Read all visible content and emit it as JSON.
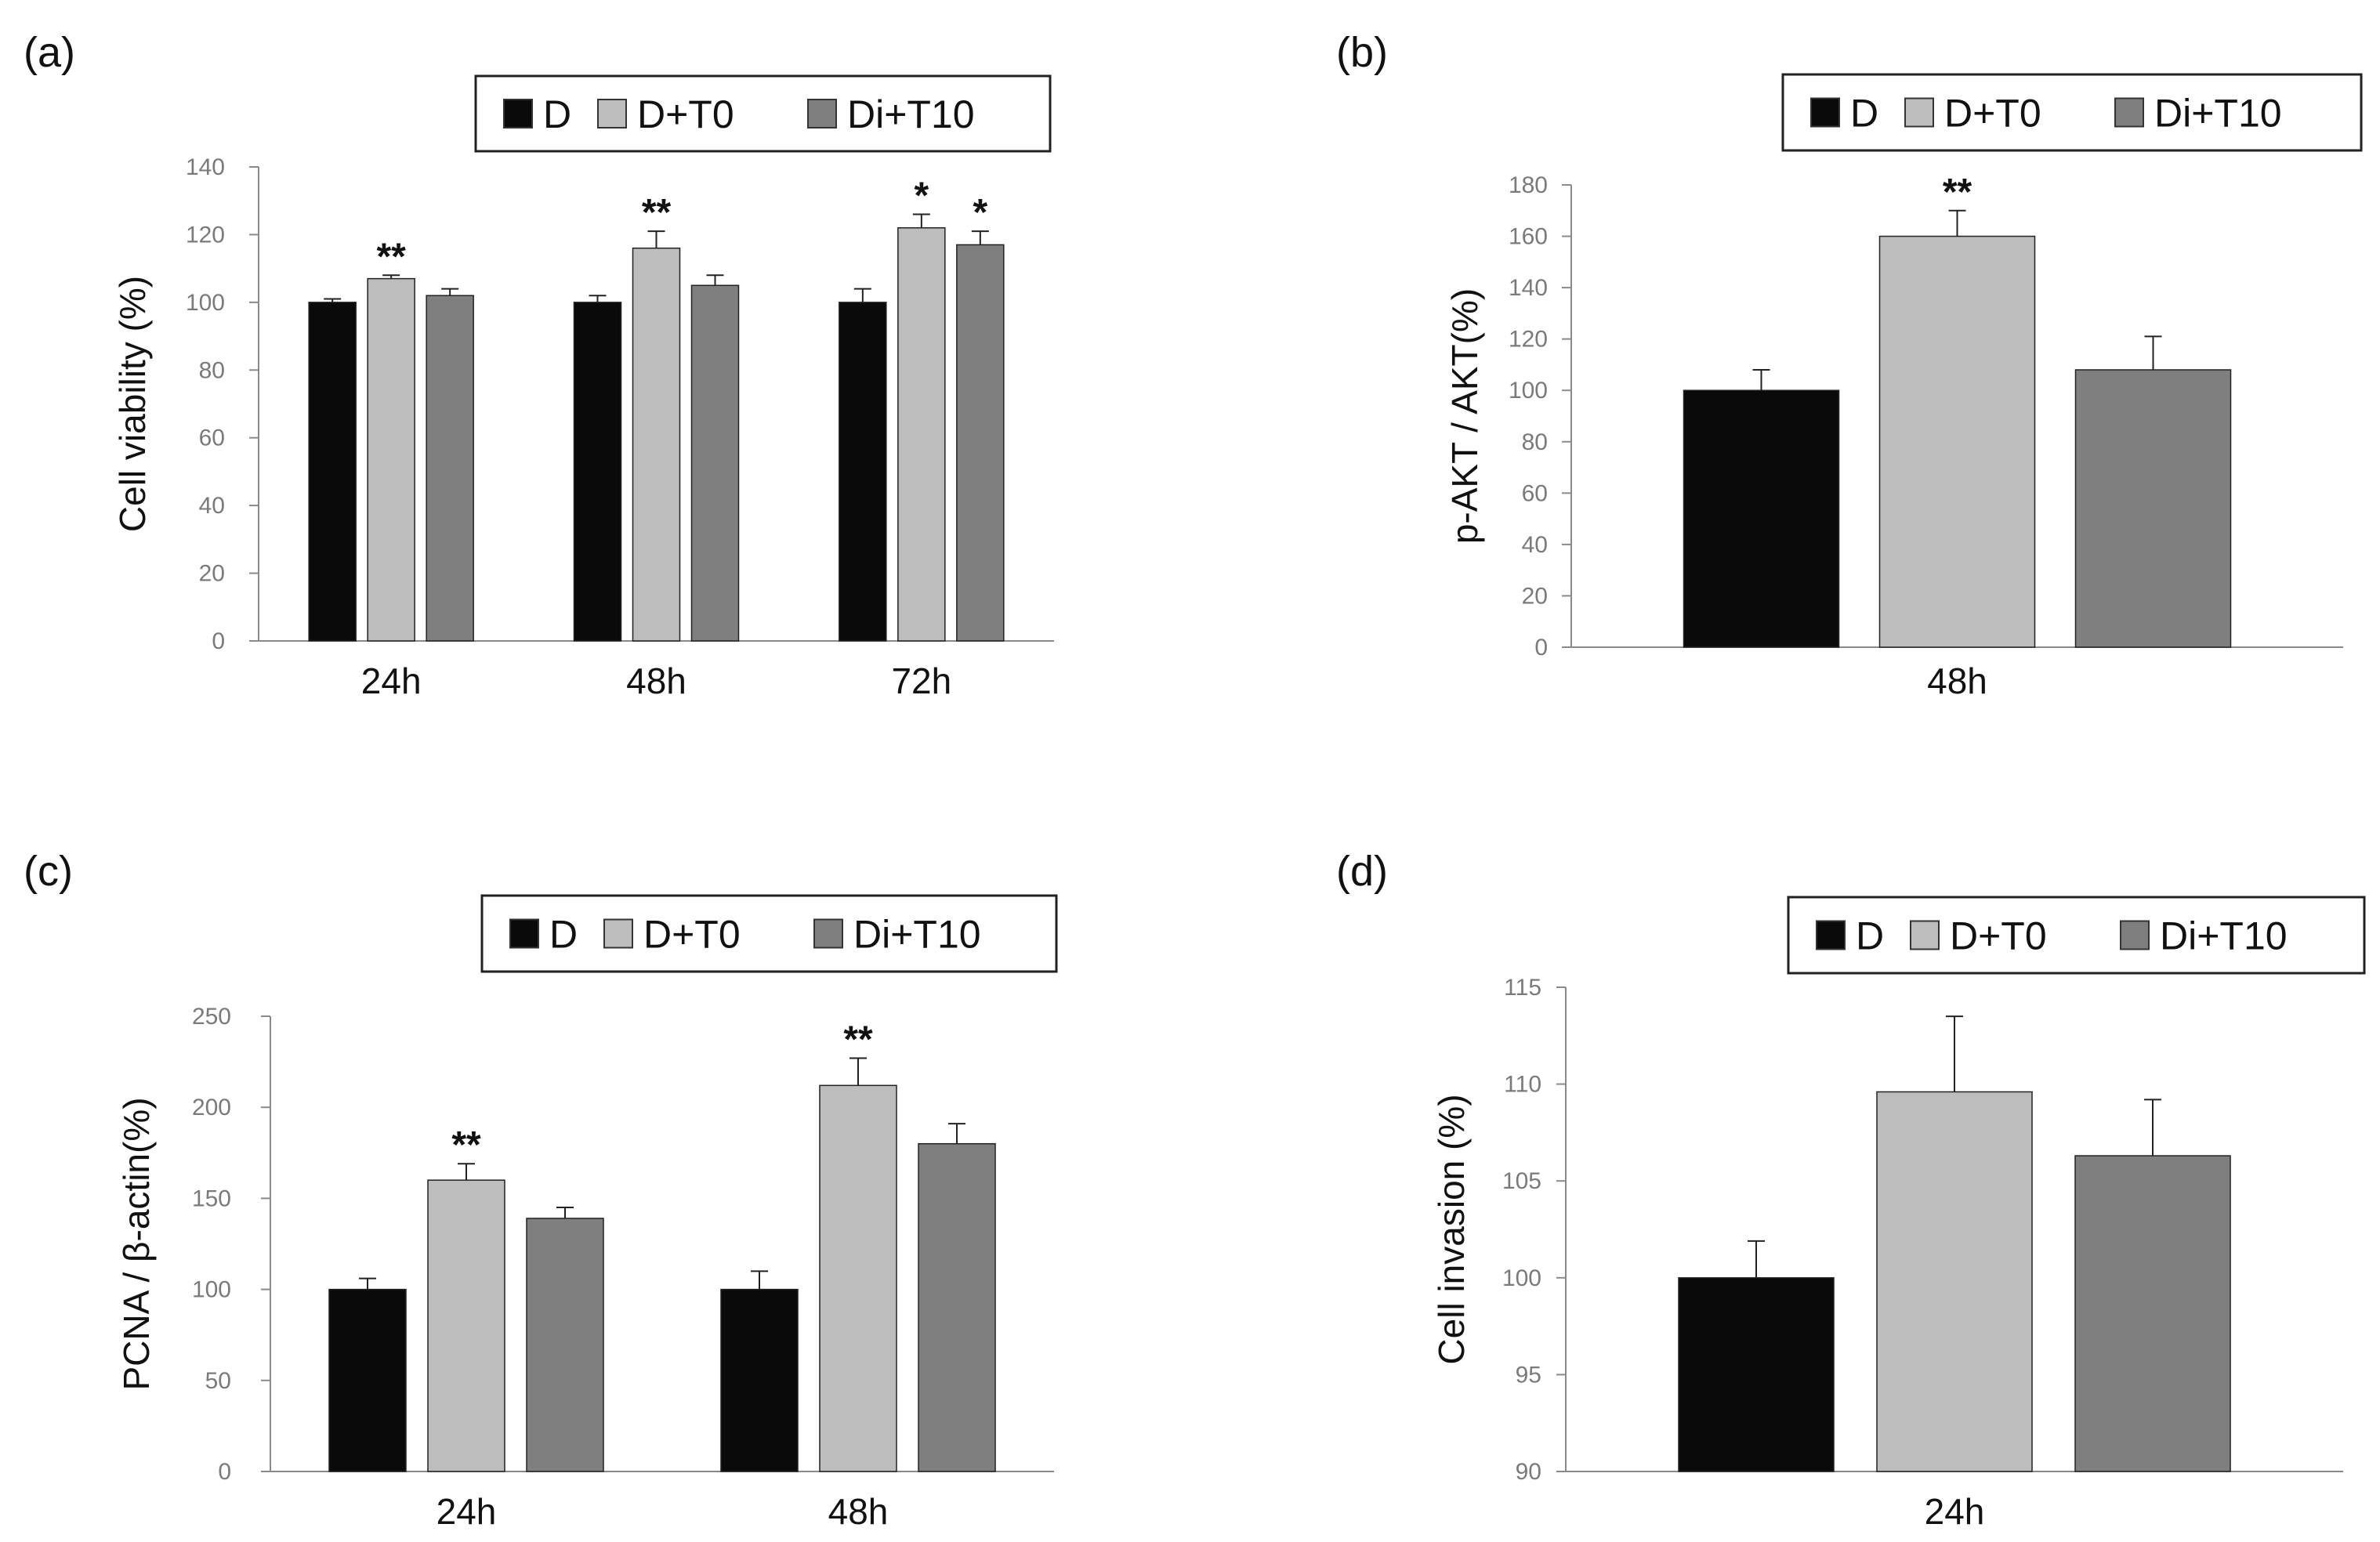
{
  "colors": {
    "D": "#0a0a0a",
    "D+T0": "#bdbdbd",
    "Di+T10": "#7f7f7f",
    "axis": "#8a8a8a"
  },
  "chart_data": [
    {
      "panel": "(a)",
      "type": "bar",
      "ylabel": "Cell viability (%)",
      "ylim": [
        0,
        140
      ],
      "yticks": [
        0,
        20,
        40,
        60,
        80,
        100,
        120,
        140
      ],
      "categories": [
        "24h",
        "48h",
        "72h"
      ],
      "legend": [
        "D",
        "D+T0",
        "Di+T10"
      ],
      "legend_position": "top-right",
      "series": [
        {
          "name": "D",
          "values": [
            100,
            100,
            100
          ],
          "errors": [
            1,
            2,
            4
          ]
        },
        {
          "name": "D+T0",
          "values": [
            107,
            116,
            122
          ],
          "errors": [
            1,
            5,
            4
          ]
        },
        {
          "name": "Di+T10",
          "values": [
            102,
            105,
            117
          ],
          "errors": [
            2,
            3,
            4
          ]
        }
      ],
      "annotations": [
        {
          "category": 0,
          "series": 1,
          "text": "**"
        },
        {
          "category": 1,
          "series": 1,
          "text": "**"
        },
        {
          "category": 2,
          "series": 1,
          "text": "*"
        },
        {
          "category": 2,
          "series": 2,
          "text": "*"
        }
      ]
    },
    {
      "panel": "(b)",
      "type": "bar",
      "ylabel": "p-AKT / AKT(%)",
      "ylim": [
        0,
        180
      ],
      "yticks": [
        0,
        20,
        40,
        60,
        80,
        100,
        120,
        140,
        160,
        180
      ],
      "categories": [
        "48h"
      ],
      "legend": [
        "D",
        "D+T0",
        "Di+T10"
      ],
      "legend_position": "top-right",
      "series": [
        {
          "name": "D",
          "values": [
            100
          ],
          "errors": [
            8
          ]
        },
        {
          "name": "D+T0",
          "values": [
            160
          ],
          "errors": [
            10
          ]
        },
        {
          "name": "Di+T10",
          "values": [
            108
          ],
          "errors": [
            13
          ]
        }
      ],
      "annotations": [
        {
          "category": 0,
          "series": 1,
          "text": "**"
        }
      ]
    },
    {
      "panel": "(c)",
      "type": "bar",
      "ylabel": "PCNA / β-actin(%)",
      "ylim": [
        0,
        250
      ],
      "yticks": [
        0,
        50,
        100,
        150,
        200,
        250
      ],
      "categories": [
        "24h",
        "48h"
      ],
      "legend": [
        "D",
        "D+T0",
        "Di+T10"
      ],
      "legend_position": "top-right",
      "series": [
        {
          "name": "D",
          "values": [
            100,
            100
          ],
          "errors": [
            6,
            10
          ]
        },
        {
          "name": "D+T0",
          "values": [
            160,
            212
          ],
          "errors": [
            9,
            15
          ]
        },
        {
          "name": "Di+T10",
          "values": [
            139,
            180
          ],
          "errors": [
            6,
            11
          ]
        }
      ],
      "annotations": [
        {
          "category": 0,
          "series": 1,
          "text": "**"
        },
        {
          "category": 1,
          "series": 1,
          "text": "**"
        }
      ]
    },
    {
      "panel": "(d)",
      "type": "bar",
      "ylabel": "Cell invasion (%)",
      "ylim": [
        90,
        115
      ],
      "yticks": [
        90,
        95,
        100,
        105,
        110,
        115
      ],
      "categories": [
        "24h"
      ],
      "legend": [
        "D",
        "D+T0",
        "Di+T10"
      ],
      "legend_position": "top-right",
      "series": [
        {
          "name": "D",
          "values": [
            100
          ],
          "errors": [
            1.9
          ]
        },
        {
          "name": "D+T0",
          "values": [
            109.6
          ],
          "errors": [
            3.9
          ]
        },
        {
          "name": "Di+T10",
          "values": [
            106.3
          ],
          "errors": [
            2.9
          ]
        }
      ],
      "annotations": []
    }
  ]
}
